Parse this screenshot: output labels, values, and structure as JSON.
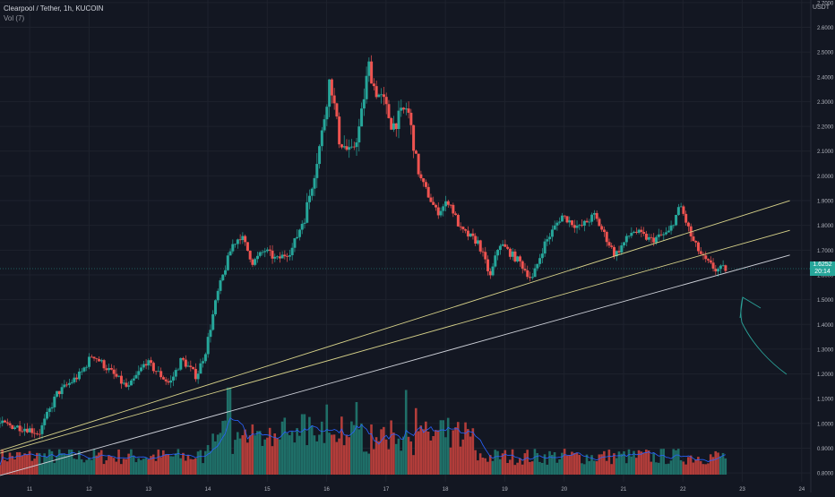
{
  "header": {
    "symbol_line": "Clearpool / Tether, 1h, KUCOIN",
    "volume_label": "Vol (7)",
    "currency": "USDT"
  },
  "price_tag": {
    "price": "1.6252",
    "countdown": "20:14"
  },
  "colors": {
    "background": "#131722",
    "up": "#26a69a",
    "down": "#ef5350",
    "vol_up": "#1f6f68",
    "vol_down": "#b23d3a",
    "vol_ma": "#2962ff",
    "trendline_yellow": "#d8d38a",
    "trendline_white": "#d1d4dc",
    "annotation": "#2aa198",
    "grid": "#1e222d"
  },
  "chart_data": {
    "type": "candlestick",
    "title": "Clearpool / Tether, 1h, KUCOIN",
    "ylabel": "USDT",
    "x_range": [
      "10 12:00",
      "24 12:00"
    ],
    "ylim": [
      0.75,
      2.75
    ],
    "y_ticks": [
      "0.8000",
      "0.9000",
      "1.0000",
      "1.1000",
      "1.2000",
      "1.3000",
      "1.4000",
      "1.5000",
      "1.6000",
      "1.7000",
      "1.8000",
      "1.9000",
      "2.0000",
      "2.1000",
      "2.2000",
      "2.3000",
      "2.4000",
      "2.5000",
      "2.6000",
      "2.7000"
    ],
    "x_ticks": [
      {
        "label": "11",
        "day": 11
      },
      {
        "label": "12",
        "day": 12
      },
      {
        "label": "13",
        "day": 13
      },
      {
        "label": "14",
        "day": 14
      },
      {
        "label": "15",
        "day": 15
      },
      {
        "label": "16",
        "day": 16
      },
      {
        "label": "17",
        "day": 17
      },
      {
        "label": "18",
        "day": 18
      },
      {
        "label": "19",
        "day": 19
      },
      {
        "label": "20",
        "day": 20
      },
      {
        "label": "21",
        "day": 21
      },
      {
        "label": "22",
        "day": 22
      },
      {
        "label": "23",
        "day": 23
      },
      {
        "label": "24",
        "day": 24
      }
    ],
    "price_path": [
      {
        "day": 10.5,
        "close": 1.0
      },
      {
        "day": 11.0,
        "close": 0.98
      },
      {
        "day": 11.2,
        "close": 0.96
      },
      {
        "day": 11.5,
        "close": 1.12
      },
      {
        "day": 11.9,
        "close": 1.2
      },
      {
        "day": 12.1,
        "close": 1.28
      },
      {
        "day": 12.4,
        "close": 1.21
      },
      {
        "day": 12.7,
        "close": 1.14
      },
      {
        "day": 13.0,
        "close": 1.25
      },
      {
        "day": 13.4,
        "close": 1.16
      },
      {
        "day": 13.6,
        "close": 1.26
      },
      {
        "day": 13.85,
        "close": 1.19
      },
      {
        "day": 14.0,
        "close": 1.29
      },
      {
        "day": 14.2,
        "close": 1.52
      },
      {
        "day": 14.45,
        "close": 1.72
      },
      {
        "day": 14.6,
        "close": 1.76
      },
      {
        "day": 14.8,
        "close": 1.65
      },
      {
        "day": 15.0,
        "close": 1.7
      },
      {
        "day": 15.2,
        "close": 1.66
      },
      {
        "day": 15.45,
        "close": 1.7
      },
      {
        "day": 15.7,
        "close": 1.86
      },
      {
        "day": 15.95,
        "close": 2.15
      },
      {
        "day": 16.1,
        "close": 2.4
      },
      {
        "day": 16.25,
        "close": 2.15
      },
      {
        "day": 16.45,
        "close": 2.08
      },
      {
        "day": 16.6,
        "close": 2.2
      },
      {
        "day": 16.75,
        "close": 2.45
      },
      {
        "day": 16.85,
        "close": 2.35
      },
      {
        "day": 17.0,
        "close": 2.3
      },
      {
        "day": 17.15,
        "close": 2.2
      },
      {
        "day": 17.4,
        "close": 2.28
      },
      {
        "day": 17.6,
        "close": 2.0
      },
      {
        "day": 17.9,
        "close": 1.85
      },
      {
        "day": 18.1,
        "close": 1.9
      },
      {
        "day": 18.3,
        "close": 1.78
      },
      {
        "day": 18.6,
        "close": 1.73
      },
      {
        "day": 18.8,
        "close": 1.59
      },
      {
        "day": 18.95,
        "close": 1.73
      },
      {
        "day": 19.3,
        "close": 1.65
      },
      {
        "day": 19.5,
        "close": 1.58
      },
      {
        "day": 19.7,
        "close": 1.72
      },
      {
        "day": 20.0,
        "close": 1.84
      },
      {
        "day": 20.3,
        "close": 1.79
      },
      {
        "day": 20.55,
        "close": 1.84
      },
      {
        "day": 20.9,
        "close": 1.68
      },
      {
        "day": 21.2,
        "close": 1.78
      },
      {
        "day": 21.5,
        "close": 1.74
      },
      {
        "day": 21.8,
        "close": 1.77
      },
      {
        "day": 22.0,
        "close": 1.88
      },
      {
        "day": 22.2,
        "close": 1.74
      },
      {
        "day": 22.4,
        "close": 1.66
      },
      {
        "day": 22.6,
        "close": 1.62
      },
      {
        "day": 22.75,
        "close": 1.6252
      }
    ],
    "volume": {
      "base_day": 10.5,
      "step_days": 0.0417,
      "max": 1,
      "spikes": [
        {
          "day": 14.35,
          "value": 0.72
        },
        {
          "day": 15.6,
          "value": 0.5
        },
        {
          "day": 16.0,
          "value": 0.58
        },
        {
          "day": 16.25,
          "value": 0.48
        },
        {
          "day": 16.5,
          "value": 0.6
        },
        {
          "day": 17.35,
          "value": 0.7
        },
        {
          "day": 17.5,
          "value": 0.55
        },
        {
          "day": 17.95,
          "value": 0.45
        }
      ]
    },
    "trendlines": [
      {
        "color": "yellow",
        "p1": {
          "day": 10.5,
          "price": 0.89
        },
        "p2": {
          "day": 23.8,
          "price": 1.9
        }
      },
      {
        "color": "yellow",
        "p1": {
          "day": 10.5,
          "price": 0.88
        },
        "p2": {
          "day": 23.8,
          "price": 1.78
        }
      },
      {
        "color": "white",
        "p1": {
          "day": 10.5,
          "price": 0.79
        },
        "p2": {
          "day": 23.8,
          "price": 1.68
        }
      }
    ]
  }
}
